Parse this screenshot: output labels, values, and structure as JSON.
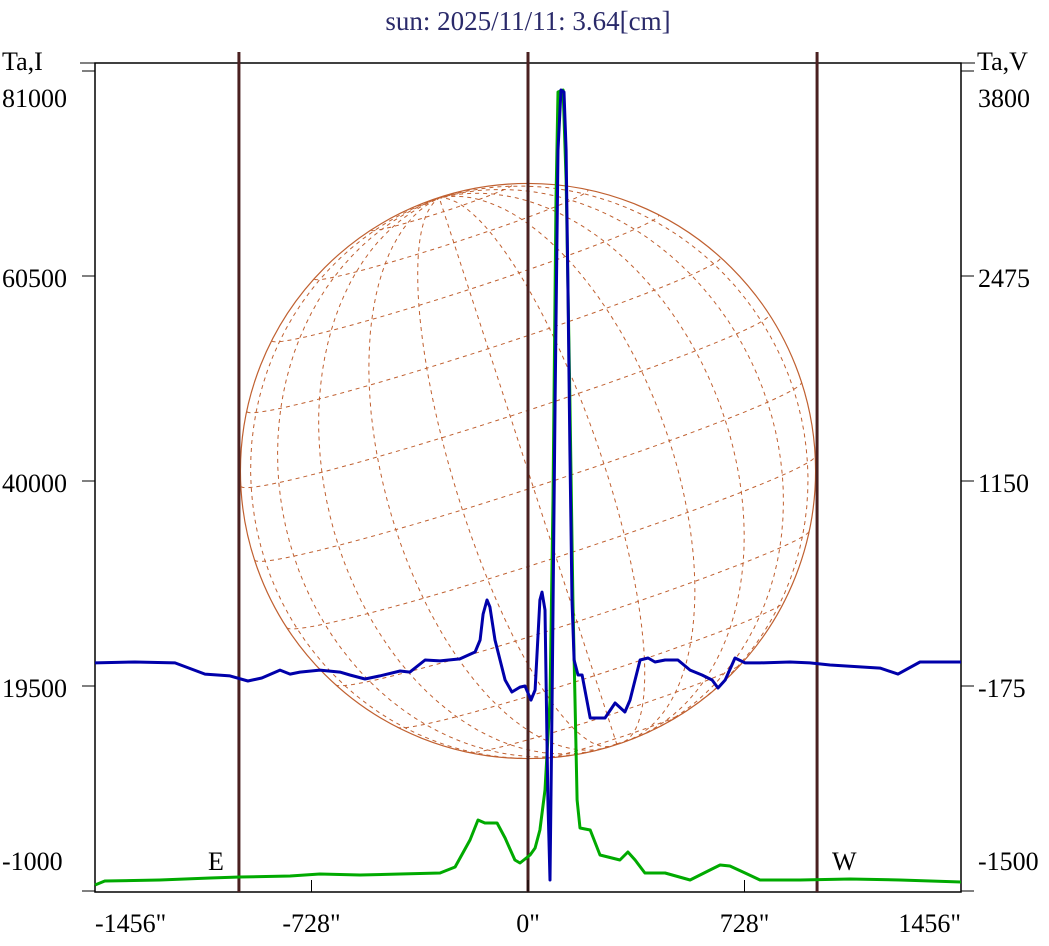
{
  "chart_data": {
    "type": "line",
    "title": "sun: 2025/11/11: 3.64[cm]",
    "left_axis_label": "Ta,I",
    "right_axis_label": "Ta,V",
    "ylim_left": [
      -1000,
      81000
    ],
    "ylim_right": [
      -1500,
      3800
    ],
    "xlim": [
      -1456,
      1456
    ],
    "left_ticks": [
      81000,
      60500,
      40000,
      19500,
      -1000
    ],
    "left_tick_labels": [
      "81000",
      "60500",
      "40000",
      "19500",
      "-1000"
    ],
    "right_ticks": [
      3800,
      2475,
      1150,
      -175,
      -1500
    ],
    "right_tick_labels": [
      "3800",
      "2475",
      "1150",
      "-175",
      "-1500"
    ],
    "x_ticks": [
      -1456,
      -728,
      0,
      728,
      1456
    ],
    "x_tick_labels": [
      "-1456\"",
      "-728\"",
      "0\"",
      "728\"",
      "1456\""
    ],
    "limb_markers": [
      -972,
      0,
      972
    ],
    "solar_radius_arcsec": 967,
    "annotations": {
      "east": "E",
      "west": "W"
    },
    "colors": {
      "I": "#00aa00",
      "V": "#0000aa",
      "title": "#2a2a6a",
      "limb": "#c06030",
      "markers": "#4a2020"
    },
    "series": [
      {
        "name": "I",
        "axis": "left",
        "x": [
          -1456,
          -1423,
          -1238,
          -1069,
          -969,
          -800,
          -700,
          -565,
          -430,
          -296,
          -245,
          -195,
          -168,
          -145,
          -104,
          -77,
          -44,
          -27,
          7,
          24,
          40,
          57,
          74,
          84,
          94,
          101,
          118,
          128,
          141,
          151,
          165,
          175,
          209,
          242,
          309,
          336,
          360,
          393,
          461,
          545,
          612,
          646,
          679,
          730,
          780,
          915,
          1083,
          1251,
          1456
        ],
        "values": [
          -400,
          0,
          100,
          300,
          400,
          500,
          700,
          600,
          700,
          800,
          1400,
          4100,
          6100,
          5800,
          5800,
          4300,
          2100,
          1800,
          2600,
          3300,
          5100,
          9100,
          18100,
          38100,
          68100,
          78900,
          79100,
          70100,
          48100,
          28100,
          8100,
          5300,
          5100,
          2600,
          2100,
          2900,
          2100,
          800,
          800,
          100,
          1100,
          1600,
          1500,
          800,
          100,
          100,
          200,
          100,
          -100
        ]
      },
      {
        "name": "V",
        "axis": "right",
        "x": [
          -1456,
          -1322,
          -1187,
          -1086,
          -1002,
          -942,
          -895,
          -834,
          -800,
          -767,
          -700,
          -632,
          -599,
          -548,
          -498,
          -430,
          -397,
          -346,
          -296,
          -229,
          -178,
          -161,
          -151,
          -138,
          -128,
          -111,
          -77,
          -54,
          -27,
          -10,
          10,
          24,
          40,
          47,
          57,
          67,
          74,
          81,
          91,
          101,
          111,
          121,
          128,
          135,
          141,
          148,
          155,
          168,
          182,
          209,
          259,
          293,
          326,
          343,
          377,
          404,
          427,
          461,
          504,
          545,
          585,
          619,
          639,
          663,
          696,
          730,
          780,
          881,
          948,
          1016,
          1184,
          1244,
          1318,
          1456
        ],
        "values": [
          -26,
          -20,
          -26,
          -98,
          -110,
          -143,
          -123,
          -72,
          -98,
          -85,
          -72,
          -85,
          -104,
          -130,
          -110,
          -78,
          -85,
          -7,
          -13,
          0,
          45,
          122,
          290,
          381,
          336,
          122,
          -136,
          -214,
          -182,
          -175,
          -266,
          -201,
          381,
          432,
          316,
          -912,
          -1429,
          -266,
          1673,
          3289,
          3677,
          3664,
          3289,
          2320,
          1350,
          381,
          -7,
          -104,
          -104,
          -382,
          -382,
          -285,
          -343,
          -266,
          -7,
          6,
          -20,
          -7,
          -7,
          -72,
          -104,
          -136,
          -188,
          -136,
          6,
          -26,
          -26,
          -20,
          -26,
          -39,
          -59,
          -98,
          -20,
          -20
        ]
      }
    ]
  }
}
